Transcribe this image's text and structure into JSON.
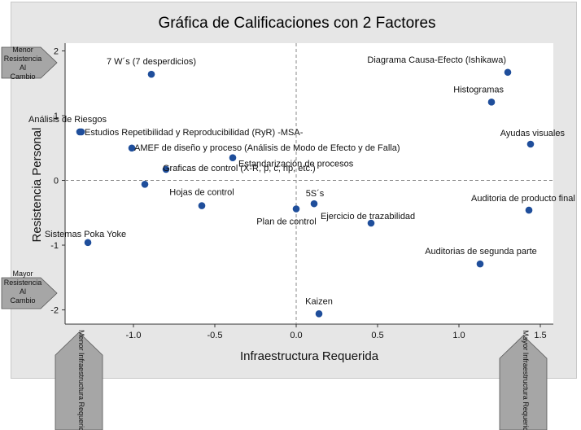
{
  "chart_data": {
    "type": "scatter",
    "title": "Gráfica de Calificaciones con 2 Factores",
    "xlabel": "Infraestructura Requerida",
    "ylabel": "Resistencia Personal",
    "xlim": [
      -1.42,
      1.58
    ],
    "ylim": [
      -2.22,
      2.12
    ],
    "xticks": [
      -1.0,
      -0.5,
      0.0,
      0.5,
      1.0,
      1.5
    ],
    "xtick_labels": [
      "-1.0",
      "-0.5",
      "0.0",
      "0.5",
      "1.0",
      "1.5"
    ],
    "yticks": [
      -2,
      -1,
      0,
      1,
      2
    ],
    "ytick_labels": [
      "-2",
      "-1",
      "0",
      "1",
      "2"
    ],
    "reference_lines": {
      "x": 0,
      "y": 0
    },
    "grid": false,
    "marker_color": "#1f4e9b",
    "points": [
      {
        "label": "7 W´s (7 desperdicios)",
        "x": -0.89,
        "y": 1.64
      },
      {
        "label": "Diagrama Causa-Efecto (Ishikawa)",
        "x": 1.3,
        "y": 1.67
      },
      {
        "label": "Histogramas",
        "x": 1.2,
        "y": 1.21
      },
      {
        "label": "Análisis de Riesgos",
        "x": -1.33,
        "y": 0.75
      },
      {
        "label": "Estudios Repetibilidad y Reproducibilidad (RyR) -MSA-",
        "x": -1.32,
        "y": 0.75
      },
      {
        "label": "Ayudas visuales",
        "x": 1.44,
        "y": 0.56
      },
      {
        "label": "AMEF de diseño y proceso (Análisis de Modo de Efecto y de Falla)",
        "x": -1.01,
        "y": 0.5
      },
      {
        "label": "Estandarización de procesos",
        "x": -0.39,
        "y": 0.35
      },
      {
        "label": "Graficas de control (X-R, p, c, np, etc.)",
        "x": -0.8,
        "y": 0.17
      },
      {
        "label": "",
        "x": -0.93,
        "y": -0.06
      },
      {
        "label": "Hojas de control",
        "x": -0.58,
        "y": -0.39
      },
      {
        "label": "5S´s",
        "x": 0.11,
        "y": -0.36
      },
      {
        "label": "Plan de control",
        "x": 0.0,
        "y": -0.44
      },
      {
        "label": "Ejercicio de trazabilidad",
        "x": 0.46,
        "y": -0.66
      },
      {
        "label": "Auditoria de producto final",
        "x": 1.43,
        "y": -0.46
      },
      {
        "label": "Sistemas Poka Yoke",
        "x": -1.28,
        "y": -0.96
      },
      {
        "label": "Auditorias de segunda parte",
        "x": 1.13,
        "y": -1.29
      },
      {
        "label": "Kaizen",
        "x": 0.14,
        "y": -2.06
      }
    ]
  },
  "side_arrows": {
    "top_left": "Menor Resistencia Al Cambio",
    "bottom_left": "Mayor Resistencia Al Cambio",
    "bottom_x_left": "Menor Infraestructura Requerida",
    "bottom_x_right": "Mayor Infraestructura Requerida"
  },
  "colors": {
    "marker": "#1f4e9b",
    "arrow_fill": "#a6a6a6",
    "frame": "#e6e6e6"
  }
}
